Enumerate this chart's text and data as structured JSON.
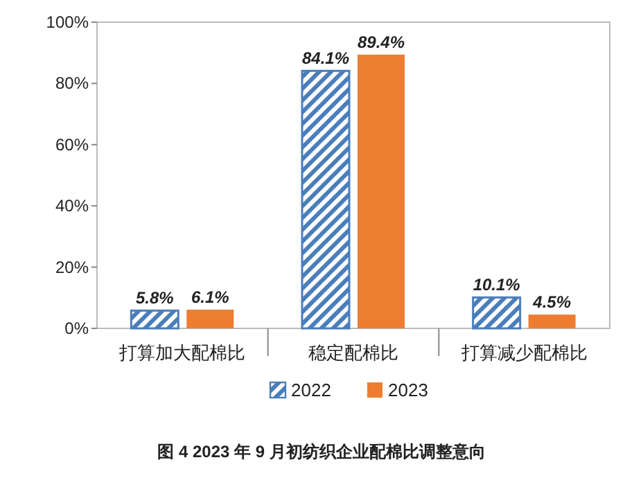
{
  "chart_data": {
    "type": "bar",
    "title": "图 4   2023 年 9 月初纺织企业配棉比调整意向",
    "categories": [
      "打算加大配棉比",
      "稳定配棉比",
      "打算减少配棉比"
    ],
    "series": [
      {
        "name": "2022",
        "color": "#4a7ebb",
        "values": [
          5.8,
          84.1,
          10.1
        ],
        "value_labels": [
          "5.8%",
          "84.1%",
          "10.1%"
        ]
      },
      {
        "name": "2023",
        "color": "#ed7d31",
        "values": [
          6.1,
          89.4,
          4.5
        ],
        "value_labels": [
          "6.1%",
          "89.4%",
          "4.5%"
        ]
      }
    ],
    "ylim": [
      0,
      100
    ],
    "yticks": [
      {
        "value": 0,
        "label": "0%"
      },
      {
        "value": 20,
        "label": "20%"
      },
      {
        "value": 40,
        "label": "40%"
      },
      {
        "value": 60,
        "label": "60%"
      },
      {
        "value": 80,
        "label": "80%"
      },
      {
        "value": 100,
        "label": "100%"
      }
    ],
    "grid": false,
    "legend": "bottom"
  }
}
